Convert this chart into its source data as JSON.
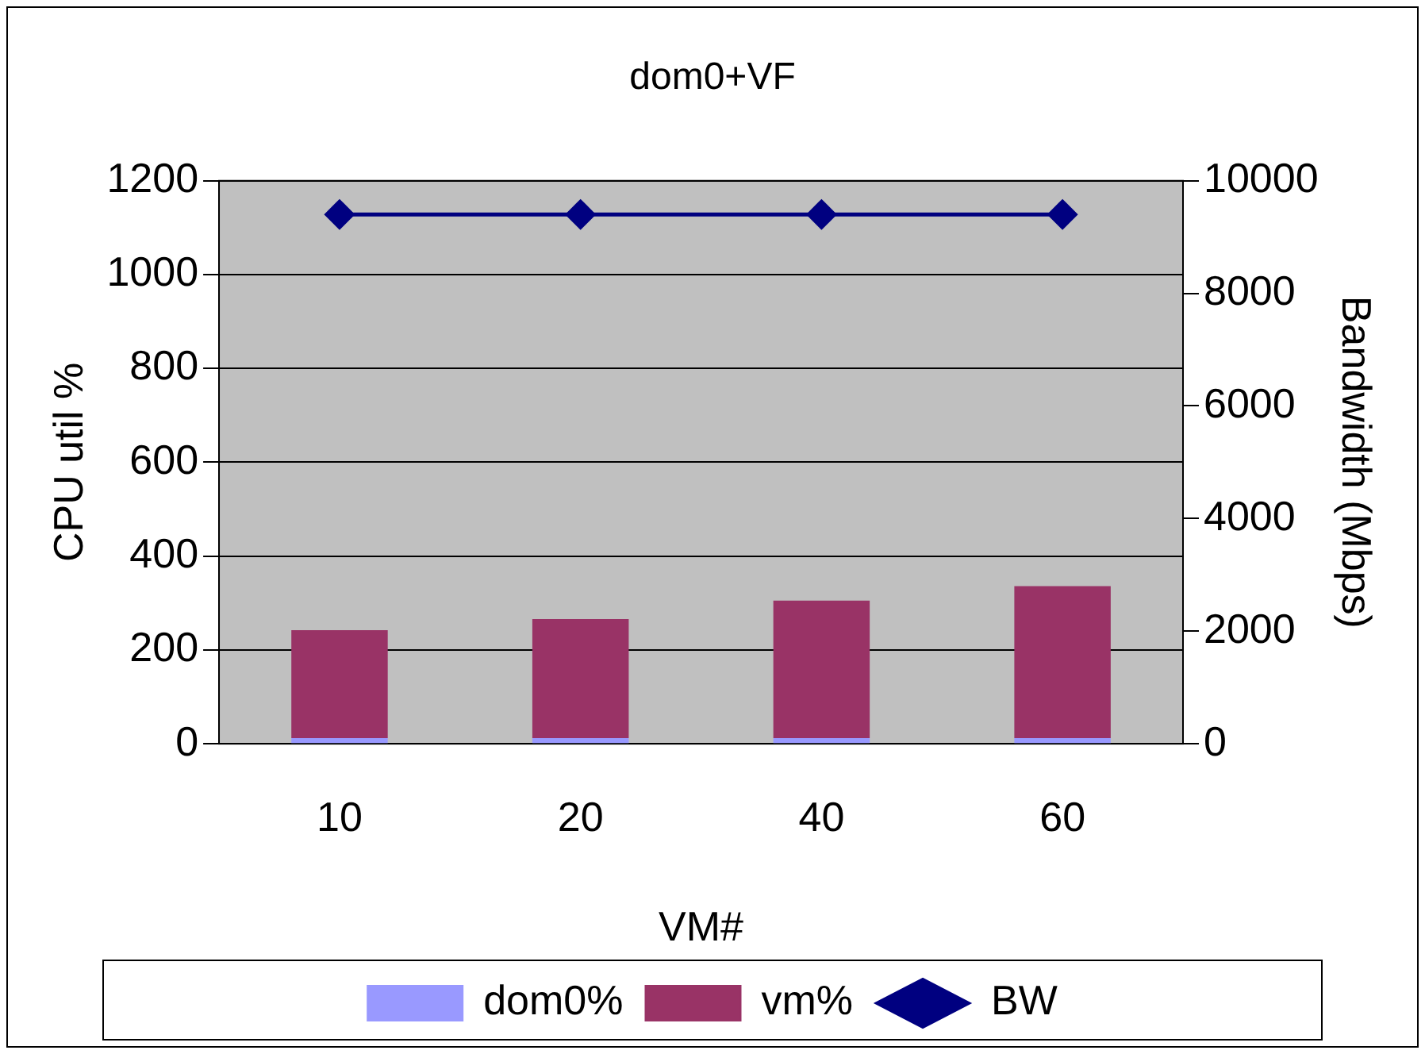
{
  "chart_data": {
    "type": "bar",
    "title": "dom0+VF",
    "xlabel": "VM#",
    "ylabel": "CPU util %",
    "y2label": "Bandwidth (Mbps)",
    "categories": [
      "10",
      "20",
      "40",
      "60"
    ],
    "stacked": true,
    "series": [
      {
        "name": "dom0%",
        "color": "#9999ff",
        "values": [
          12,
          12,
          12,
          12
        ]
      },
      {
        "name": "vm%",
        "color": "#993366",
        "values": [
          230,
          254,
          293,
          324
        ]
      },
      {
        "name": "BW",
        "type": "line",
        "axis": "y2",
        "color": "#000080",
        "marker": "diamond",
        "values": [
          9400,
          9400,
          9400,
          9400
        ]
      }
    ],
    "ylim": [
      0,
      1200
    ],
    "yticks": [
      0,
      200,
      400,
      600,
      800,
      1000,
      1200
    ],
    "y2lim": [
      0,
      10000
    ],
    "y2ticks": [
      0,
      2000,
      4000,
      6000,
      8000,
      10000
    ],
    "grid": "y",
    "legend": "bottom"
  }
}
